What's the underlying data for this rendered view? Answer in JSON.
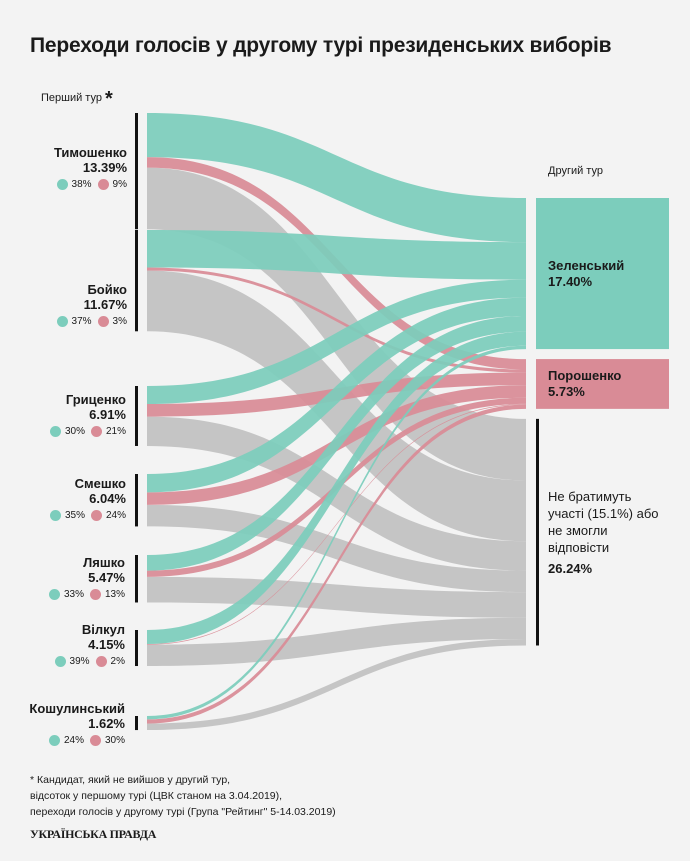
{
  "title": "Переходи голосів у другому турі президенських виборів",
  "first_round_label": "Перший тур",
  "first_round_mark": "*",
  "second_round_label": "Другий тур",
  "colors": {
    "zelensky": "#7ccdbc",
    "poroshenko": "#d98b96",
    "abstain": "#c2c2c2",
    "background": "#f3f3f3"
  },
  "sources": [
    {
      "name": "Тимошенко",
      "pct": "13.39%",
      "green": "38%",
      "red": "9%"
    },
    {
      "name": "Бойко",
      "pct": "11.67%",
      "green": "37%",
      "red": "3%"
    },
    {
      "name": "Гриценко",
      "pct": "6.91%",
      "green": "30%",
      "red": "21%"
    },
    {
      "name": "Смешко",
      "pct": "6.04%",
      "green": "35%",
      "red": "24%"
    },
    {
      "name": "Ляшко",
      "pct": "5.47%",
      "green": "33%",
      "red": "13%"
    },
    {
      "name": "Вілкул",
      "pct": "4.15%",
      "green": "39%",
      "red": "2%"
    },
    {
      "name": "Кошулинський",
      "pct": "1.62%",
      "green": "24%",
      "red": "30%"
    }
  ],
  "destinations": {
    "zelensky": {
      "name": "Зеленський",
      "pct": "17.40%"
    },
    "poroshenko": {
      "name": "Порошенко",
      "pct": "5.73%"
    },
    "abstain": {
      "text": "Не братимуть участі (15.1%) або не змогли відповісти",
      "pct": "26.24%"
    }
  },
  "chart_data": {
    "type": "sankey",
    "sources": [
      "Тимошенко",
      "Бойко",
      "Гриценко",
      "Смешко",
      "Ляшко",
      "Вілкул",
      "Кошулинський"
    ],
    "source_share": [
      13.39,
      11.67,
      6.91,
      6.04,
      5.47,
      4.15,
      1.62
    ],
    "targets": [
      "Зеленський",
      "Порошенко",
      "Не братимуть участі або не змогли відповісти"
    ],
    "target_share": [
      17.4,
      5.73,
      26.24
    ],
    "transfer_percent": {
      "Зеленський": [
        38,
        37,
        30,
        35,
        33,
        39,
        24
      ],
      "Порошенко": [
        9,
        3,
        21,
        24,
        13,
        2,
        30
      ]
    }
  },
  "footnote": [
    "* Кандидат, який не вийшов у другий тур,",
    "відсоток у першому турі (ЦВК станом на 3.04.2019),",
    "переходи голосів у другому турі (Група \"Рейтинг\" 5-14.03.2019)"
  ],
  "logo": "УКРАЇНСЬКА ПРАВДА"
}
